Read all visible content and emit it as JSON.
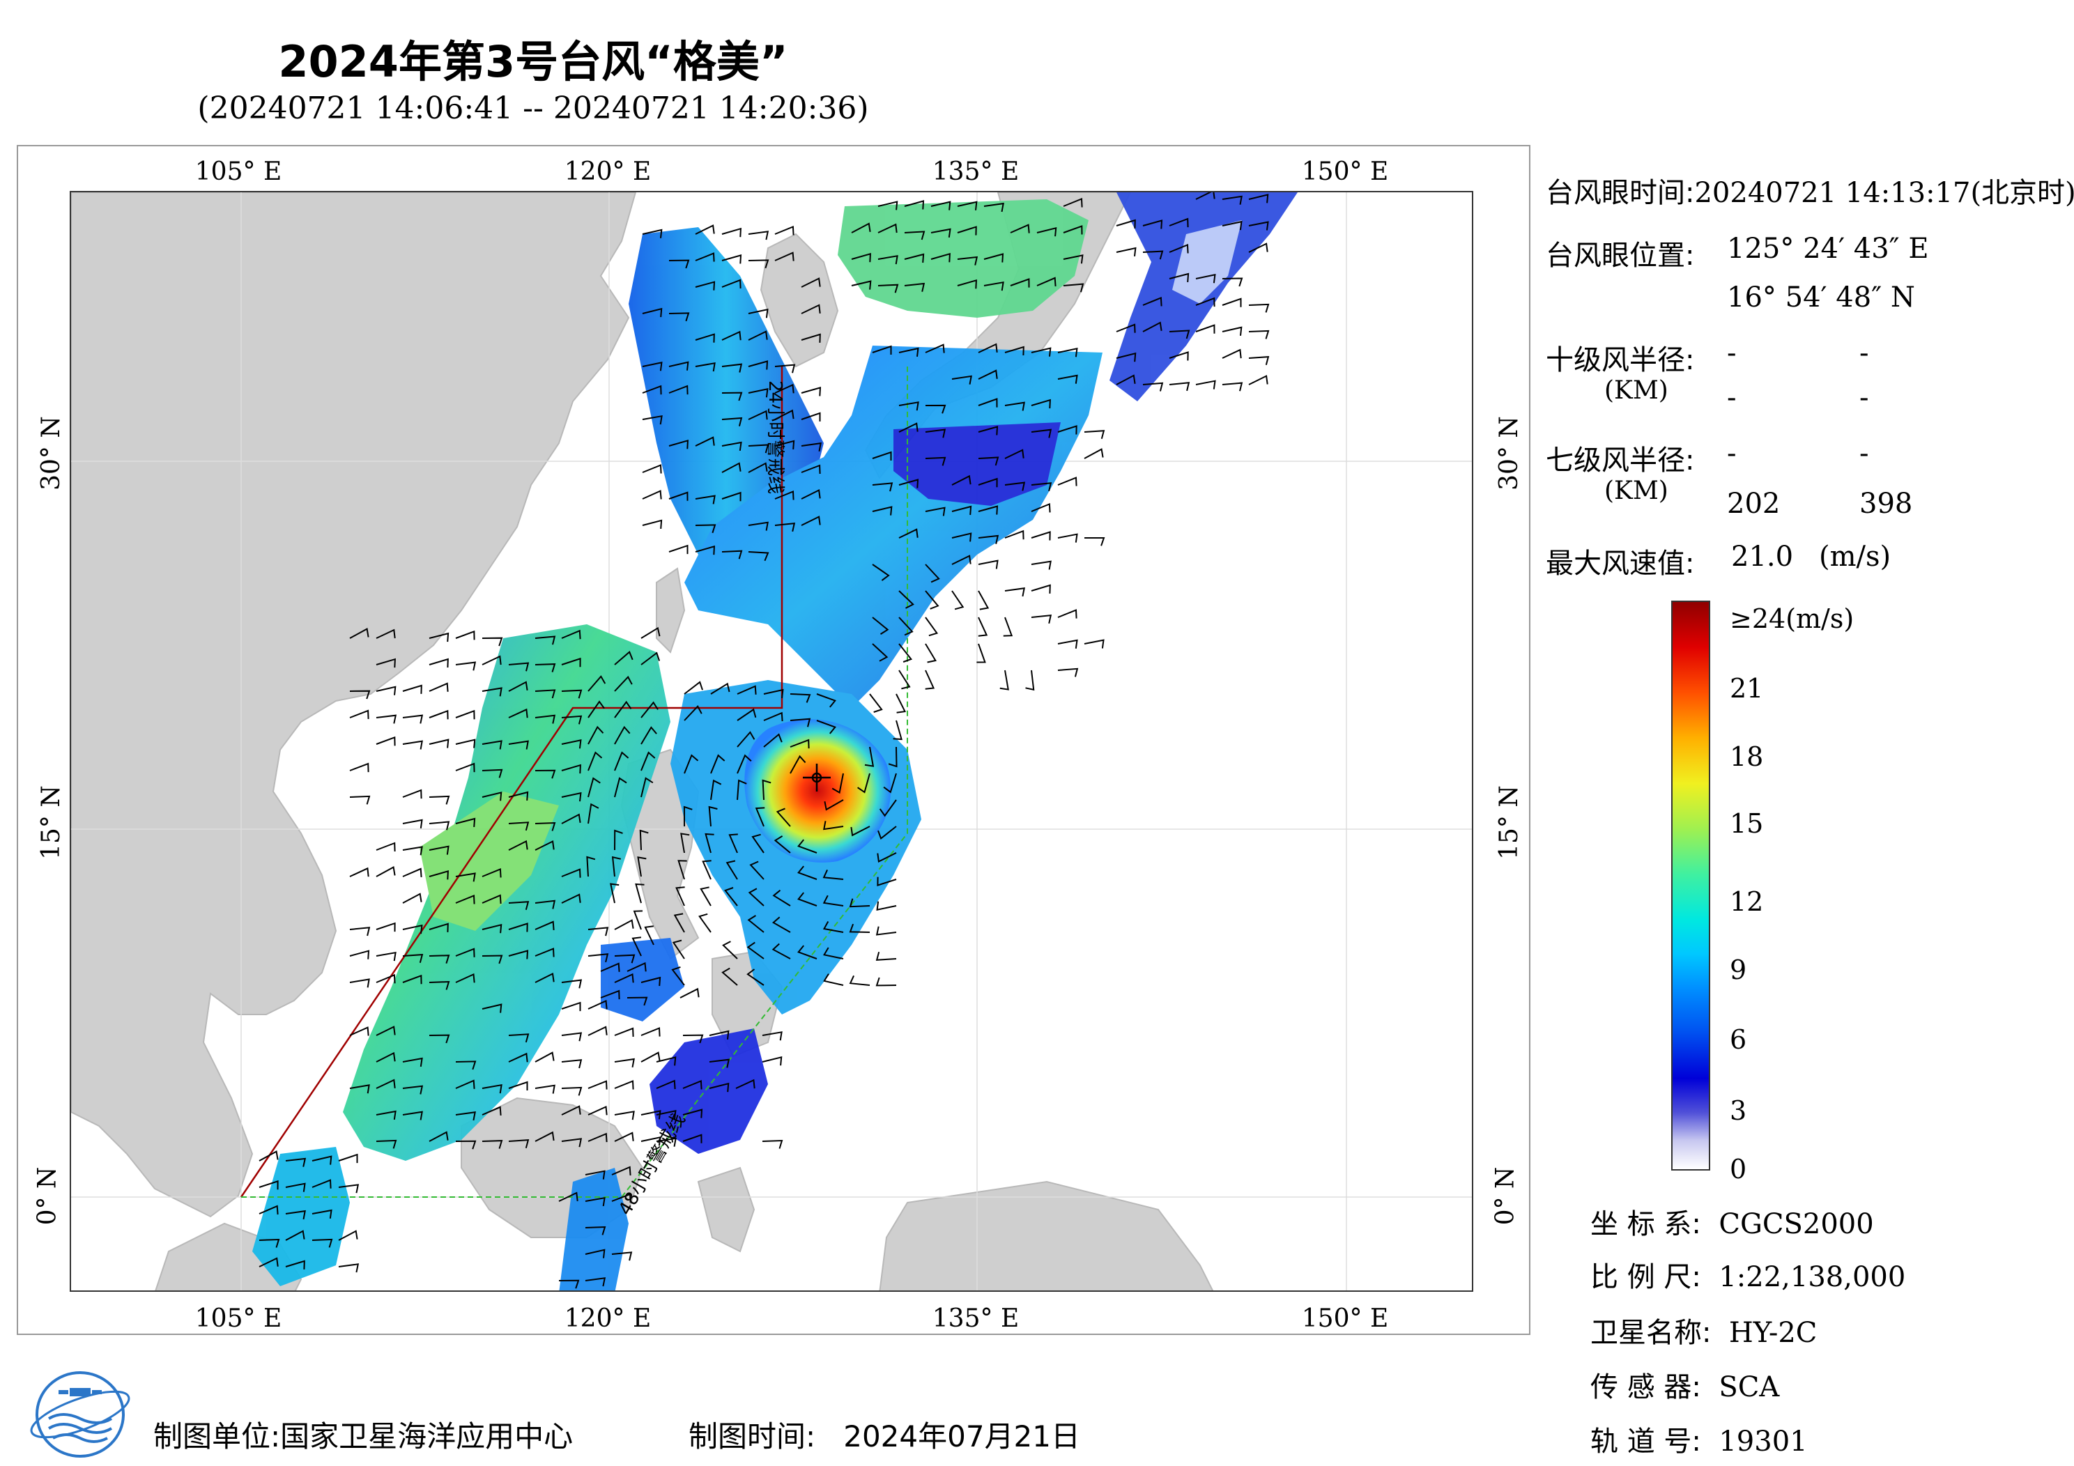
{
  "title": "2024年第3号台风“格美”",
  "subtitle": "(20240721 14:06:41 -- 20240721 14:20:36)",
  "map": {
    "lon_ticks": [
      "105° E",
      "120° E",
      "135° E",
      "150° E"
    ],
    "lat_ticks": [
      "30° N",
      "15° N",
      "0° N"
    ],
    "line_labels": [
      "24小时警戒线",
      "48小时警戒线"
    ],
    "colors": {
      "land": "#cfcfcf",
      "sea": "#ffffff",
      "warning_24h": "#a00000",
      "warning_48h": "#33bb33"
    }
  },
  "eye": {
    "time_label": "台风眼时间:",
    "time_value": "20240721 14:13:17(北京时)",
    "position_label": "台风眼位置:",
    "lon": "125° 24′ 43″ E",
    "lat": "16° 54′ 48″ N"
  },
  "radius10": {
    "label": "十级风半径:",
    "unit": "(KM)",
    "values": [
      "-",
      "-",
      "-",
      "-"
    ]
  },
  "radius7": {
    "label": "七级风半径:",
    "unit": "(KM)",
    "values": [
      "-",
      "-",
      "202",
      "398"
    ]
  },
  "max_wind": {
    "label": "最大风速值:",
    "value": "21.0",
    "unit": "(m/s)"
  },
  "colorbar": {
    "ticks": [
      "≥24(m/s)",
      "21",
      "18",
      "15",
      "12",
      "9",
      "6",
      "3",
      "0"
    ],
    "min": 0,
    "max": 24
  },
  "meta": {
    "coord_label": "坐 标 系:",
    "coord_value": "CGCS2000",
    "scale_label": "比 例 尺:",
    "scale_value": "1:22,138,000",
    "satellite_label": "卫星名称:",
    "satellite_value": "HY-2C",
    "sensor_label": "传 感 器:",
    "sensor_value": "SCA",
    "orbit_label": "轨 道 号:",
    "orbit_value": "19301"
  },
  "footer": {
    "unit_label": "制图单位:",
    "unit_value": "国家卫星海洋应用中心",
    "time_label": "制图时间:",
    "time_value": "2024年07月21日"
  }
}
